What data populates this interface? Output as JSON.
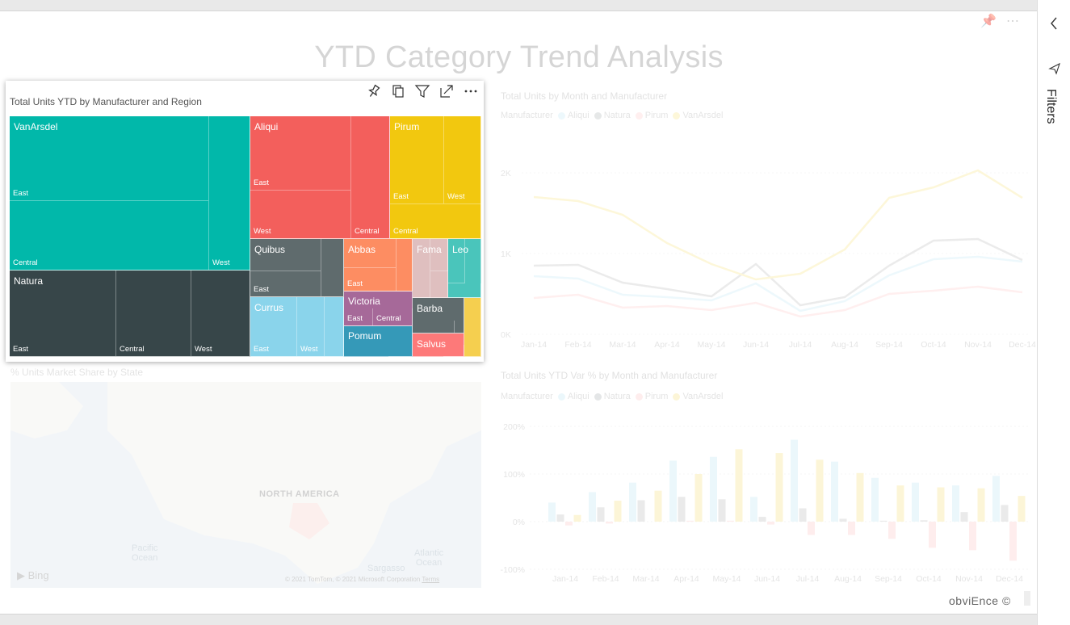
{
  "report": {
    "title": "YTD Category Trend Analysis",
    "watermark": "obviEnce ©"
  },
  "filters_pane": {
    "label": "Filters"
  },
  "colors": {
    "aliqui": "#f35f5c",
    "vanarsdel": "#01b8aa",
    "natura": "#374649",
    "pirum": "#f2c80f",
    "quibus": "#5f6b6d",
    "abbas": "#fd8d62",
    "fama": "#dfbfbf",
    "leo": "#4ac5bb",
    "currus": "#8ad4eb",
    "victoria": "#a66999",
    "barba": "#5f6b6d",
    "pomum": "#3599b8",
    "salvus": "#fe9666",
    "line_aliqui": "#8ad4eb",
    "line_natura": "#a0a0a0",
    "line_pirum": "#fd9696",
    "line_vanarsdel": "#f5d33f"
  },
  "treemap": {
    "title": "Total Units YTD by Manufacturer and Region",
    "toolbar": [
      "pin-icon",
      "copy-icon",
      "filter-icon",
      "focus-mode-icon",
      "more-options-icon"
    ],
    "tiles": {
      "vanarsdel": "VanArsdel",
      "aliqui": "Aliqui",
      "pirum": "Pirum",
      "natura": "Natura",
      "quibus": "Quibus",
      "abbas": "Abbas",
      "fama": "Fama",
      "leo": "Leo",
      "currus": "Currus",
      "victoria": "Victoria",
      "barba": "Barba",
      "pomum": "Pomum",
      "salvus": "Salvus"
    },
    "regions": {
      "east": "East",
      "central": "Central",
      "west": "West"
    }
  },
  "line_chart": {
    "title": "Total Units by Month and Manufacturer",
    "legend_title": "Manufacturer",
    "legend": [
      "Aliqui",
      "Natura",
      "Pirum",
      "VanArsdel"
    ]
  },
  "bar_chart": {
    "title": "Total Units YTD Var % by Month and Manufacturer",
    "legend_title": "Manufacturer",
    "legend": [
      "Aliqui",
      "Natura",
      "Pirum",
      "VanArsdel"
    ]
  },
  "map": {
    "title": "% Units Market Share by State",
    "label_na": "NORTH AMERICA",
    "label_pacific": "Pacific\nOcean",
    "label_atlantic": "Atlantic\nOcean",
    "label_sargasso": "Sargasso",
    "bing": "Bing",
    "copyright": "© 2021 TomTom, © 2021 Microsoft Corporation",
    "terms": "Terms"
  },
  "chart_data": [
    {
      "type": "line",
      "title": "Total Units by Month and Manufacturer",
      "categories": [
        "Jan-14",
        "Feb-14",
        "Mar-14",
        "Apr-14",
        "May-14",
        "Jun-14",
        "Jul-14",
        "Aug-14",
        "Sep-14",
        "Oct-14",
        "Nov-14",
        "Dec-14"
      ],
      "ylim": [
        0,
        2100
      ],
      "yticks": [
        "0K",
        "1K",
        "2K"
      ],
      "series": [
        {
          "name": "Aliqui",
          "values": [
            720,
            690,
            490,
            460,
            420,
            630,
            290,
            410,
            730,
            930,
            960,
            900
          ]
        },
        {
          "name": "Natura",
          "values": [
            850,
            860,
            640,
            560,
            470,
            870,
            360,
            460,
            850,
            1160,
            1180,
            920
          ]
        },
        {
          "name": "Pirum",
          "values": [
            450,
            490,
            330,
            350,
            300,
            390,
            220,
            300,
            500,
            540,
            590,
            520
          ]
        },
        {
          "name": "VanArsdel",
          "values": [
            1700,
            1650,
            1480,
            1130,
            870,
            680,
            750,
            1050,
            1690,
            1820,
            2030,
            1690
          ]
        }
      ]
    },
    {
      "type": "bar",
      "title": "Total Units YTD Var % by Month and Manufacturer",
      "categories": [
        "Jan-14",
        "Feb-14",
        "Mar-14",
        "Apr-14",
        "May-14",
        "Jun-14",
        "Jul-14",
        "Aug-14",
        "Sep-14",
        "Oct-14",
        "Nov-14",
        "Dec-14"
      ],
      "ylim": [
        -100,
        200
      ],
      "yticks": [
        "200%",
        "100%",
        "0%",
        "-100%"
      ],
      "series": [
        {
          "name": "Aliqui",
          "values": [
            40,
            62,
            82,
            128,
            136,
            52,
            172,
            126,
            92,
            82,
            76,
            96
          ]
        },
        {
          "name": "Natura",
          "values": [
            15,
            30,
            45,
            52,
            47,
            10,
            28,
            6,
            2,
            3,
            20,
            35
          ]
        },
        {
          "name": "Pirum",
          "values": [
            -8,
            -4,
            0,
            2,
            2,
            -6,
            -28,
            -28,
            -36,
            -55,
            -60,
            -82
          ]
        },
        {
          "name": "VanArsdel",
          "values": [
            14,
            44,
            65,
            100,
            152,
            144,
            130,
            102,
            76,
            72,
            70,
            54
          ]
        }
      ]
    }
  ]
}
